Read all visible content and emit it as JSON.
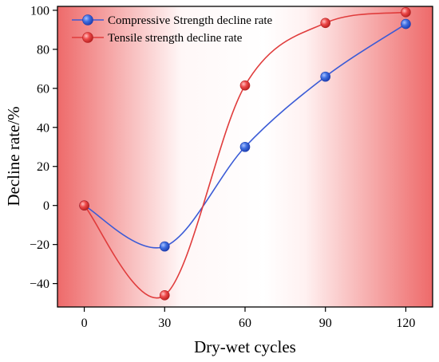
{
  "chart_data": {
    "type": "line",
    "xlabel": "Dry-wet cycles",
    "ylabel": "Decline rate/%",
    "x": [
      0,
      30,
      60,
      90,
      120
    ],
    "xticks": [
      0,
      30,
      60,
      90,
      120
    ],
    "yticks": [
      -40,
      -20,
      0,
      20,
      40,
      60,
      80,
      100
    ],
    "xlim": [
      -10,
      130
    ],
    "ylim": [
      -52,
      102
    ],
    "legend_position": "top-left",
    "grid": false,
    "smoothed": true,
    "background": "horizontal red-white-red gradient",
    "series": [
      {
        "name": "Compressive Strength decline rate",
        "values": [
          0,
          -21,
          30,
          66,
          93
        ],
        "line_color": "#3b5bd6",
        "marker_color": "#3f6fe0"
      },
      {
        "name": "Tensile strength decline rate",
        "values": [
          0,
          -46,
          61.5,
          93.5,
          99
        ],
        "line_color": "#e03c3c",
        "marker_color": "#ee4a4a"
      }
    ]
  },
  "colors": {
    "gradient_edge": "#ee6a6a",
    "gradient_center": "#ffffff"
  }
}
